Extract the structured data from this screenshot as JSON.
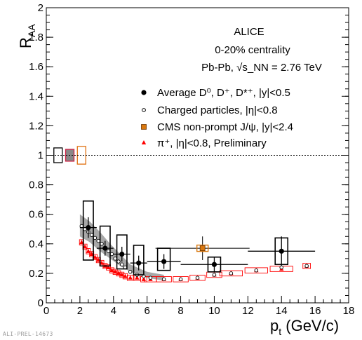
{
  "footer": "ALI-PREL-14673",
  "chart_data": {
    "type": "scatter",
    "title": "ALICE",
    "subtitle_lines": [
      "0-20% centrality",
      "Pb-Pb, √s_NN = 2.76 TeV"
    ],
    "xlabel": "p_t (GeV/c)",
    "ylabel": "R_AA",
    "xlim": [
      0,
      18
    ],
    "ylim": [
      0,
      2
    ],
    "x_ticks": [
      0,
      2,
      4,
      6,
      8,
      10,
      12,
      14,
      16,
      18
    ],
    "y_ticks": [
      0,
      0.2,
      0.4,
      0.6,
      0.8,
      1,
      1.2,
      1.4,
      1.6,
      1.8,
      2
    ],
    "reference_line_y": 1,
    "grid": false,
    "legend_position": "top-right",
    "legend": [
      {
        "label": "Average D⁰, D⁺, D*⁺, |y|<0.5",
        "marker": "filled-circle"
      },
      {
        "label": "Charged particles, |η|<0.8",
        "marker": "open-circle"
      },
      {
        "label": "CMS non-prompt J/ψ, |y|<2.4",
        "marker": "orange-square"
      },
      {
        "label": "π⁺, |η|<0.8, Preliminary",
        "marker": "red-triangle"
      }
    ],
    "series": [
      {
        "name": "Average D⁰, D⁺, D*⁺, |y|<0.5",
        "color": "#000000",
        "points": [
          {
            "x": 2.5,
            "y": 0.51,
            "xerr": 0.5,
            "yerr": 0.07,
            "syst": [
              0.29,
              0.69
            ]
          },
          {
            "x": 3.5,
            "y": 0.37,
            "xerr": 0.5,
            "yerr": 0.05,
            "syst": [
              0.25,
              0.52
            ]
          },
          {
            "x": 4.5,
            "y": 0.33,
            "xerr": 0.5,
            "yerr": 0.05,
            "syst": [
              0.23,
              0.46
            ]
          },
          {
            "x": 5.5,
            "y": 0.27,
            "xerr": 0.5,
            "yerr": 0.05,
            "syst": [
              0.19,
              0.39
            ]
          },
          {
            "x": 7.0,
            "y": 0.28,
            "xerr": 1.0,
            "yerr": 0.05,
            "syst": [
              0.22,
              0.37
            ]
          },
          {
            "x": 10.0,
            "y": 0.26,
            "xerr": 2.0,
            "yerr": 0.05,
            "syst": [
              0.21,
              0.31
            ]
          },
          {
            "x": 14.0,
            "y": 0.35,
            "xerr": 2.0,
            "yerr": 0.1,
            "syst": [
              0.26,
              0.44
            ]
          }
        ]
      },
      {
        "name": "Charged particles, |η|<0.8",
        "color": "#000000",
        "points": [
          {
            "x": 2.1,
            "y": 0.52
          },
          {
            "x": 2.3,
            "y": 0.5
          },
          {
            "x": 2.5,
            "y": 0.48
          },
          {
            "x": 2.7,
            "y": 0.46
          },
          {
            "x": 2.9,
            "y": 0.44
          },
          {
            "x": 3.1,
            "y": 0.42
          },
          {
            "x": 3.3,
            "y": 0.4
          },
          {
            "x": 3.5,
            "y": 0.37
          },
          {
            "x": 3.7,
            "y": 0.35
          },
          {
            "x": 3.9,
            "y": 0.33
          },
          {
            "x": 4.1,
            "y": 0.3
          },
          {
            "x": 4.3,
            "y": 0.28
          },
          {
            "x": 4.5,
            "y": 0.26
          },
          {
            "x": 4.7,
            "y": 0.24
          },
          {
            "x": 5.0,
            "y": 0.21
          },
          {
            "x": 5.4,
            "y": 0.19
          },
          {
            "x": 5.8,
            "y": 0.18
          },
          {
            "x": 6.2,
            "y": 0.17
          },
          {
            "x": 7.0,
            "y": 0.16
          },
          {
            "x": 8.0,
            "y": 0.16
          },
          {
            "x": 9.0,
            "y": 0.17
          },
          {
            "x": 10.0,
            "y": 0.19
          },
          {
            "x": 11.0,
            "y": 0.2
          },
          {
            "x": 12.5,
            "y": 0.22
          },
          {
            "x": 14.0,
            "y": 0.24
          },
          {
            "x": 15.5,
            "y": 0.25
          }
        ]
      },
      {
        "name": "CMS non-prompt J/ψ, |y|<2.4",
        "color": "#d9780f",
        "points": [
          {
            "x": 9.3,
            "y": 0.37,
            "xerr": 2.8,
            "yerr": 0.08
          }
        ]
      },
      {
        "name": "π⁺, |η|<0.8, Preliminary",
        "color": "#ff0000",
        "points": [
          {
            "x": 2.1,
            "y": 0.41
          },
          {
            "x": 2.3,
            "y": 0.38
          },
          {
            "x": 2.5,
            "y": 0.35
          },
          {
            "x": 2.7,
            "y": 0.33
          },
          {
            "x": 2.9,
            "y": 0.31
          },
          {
            "x": 3.1,
            "y": 0.29
          },
          {
            "x": 3.3,
            "y": 0.27
          },
          {
            "x": 3.5,
            "y": 0.25
          },
          {
            "x": 3.7,
            "y": 0.24
          },
          {
            "x": 3.9,
            "y": 0.22
          },
          {
            "x": 4.1,
            "y": 0.21
          },
          {
            "x": 4.3,
            "y": 0.2
          },
          {
            "x": 4.5,
            "y": 0.19
          },
          {
            "x": 4.7,
            "y": 0.18
          },
          {
            "x": 5.0,
            "y": 0.17
          },
          {
            "x": 5.4,
            "y": 0.17
          },
          {
            "x": 5.8,
            "y": 0.16
          },
          {
            "x": 6.2,
            "y": 0.16
          },
          {
            "x": 7.0,
            "y": 0.16
          },
          {
            "x": 8.0,
            "y": 0.16
          },
          {
            "x": 9.0,
            "y": 0.17
          },
          {
            "x": 10.0,
            "y": 0.19
          },
          {
            "x": 11.0,
            "y": 0.2
          },
          {
            "x": 12.5,
            "y": 0.22
          },
          {
            "x": 14.0,
            "y": 0.23
          },
          {
            "x": 15.5,
            "y": 0.25
          }
        ]
      }
    ],
    "normalization_boxes": [
      {
        "x": 0.7,
        "y": 1.0,
        "half_height": 0.05,
        "color": "#000000",
        "fill": "none"
      },
      {
        "x": 1.4,
        "y": 1.0,
        "half_height": 0.04,
        "color": "#cc2244",
        "fill": "#888888"
      },
      {
        "x": 2.1,
        "y": 1.0,
        "half_height": 0.06,
        "color": "#e07010",
        "fill": "none"
      }
    ],
    "charged_band": {
      "color": "#999999",
      "points": [
        [
          2.0,
          0.45,
          0.6
        ],
        [
          2.6,
          0.41,
          0.55
        ],
        [
          3.2,
          0.35,
          0.48
        ],
        [
          3.8,
          0.3,
          0.4
        ],
        [
          4.4,
          0.25,
          0.33
        ],
        [
          5.0,
          0.21,
          0.26
        ],
        [
          6.0,
          0.17,
          0.21
        ],
        [
          7.0,
          0.15,
          0.19
        ]
      ]
    }
  }
}
